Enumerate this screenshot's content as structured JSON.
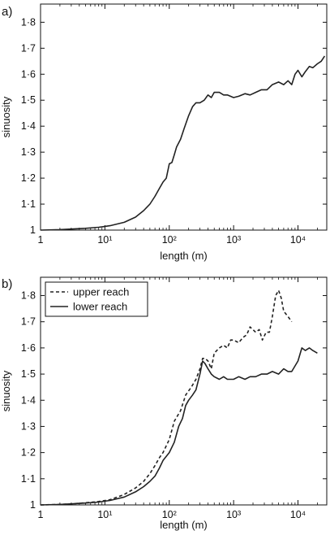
{
  "chart_data": [
    {
      "type": "line",
      "panel_label": "a)",
      "xlabel": "length (m)",
      "ylabel": "sinuosity",
      "x_scale": "log",
      "xlim": [
        1,
        28000
      ],
      "ylim": [
        1,
        1.87
      ],
      "x_ticks": [
        1,
        10,
        100,
        1000,
        10000
      ],
      "x_tick_labels": [
        "1",
        "10¹",
        "10²",
        "10³",
        "10⁴"
      ],
      "y_ticks": [
        1,
        1.1,
        1.2,
        1.3,
        1.4,
        1.5,
        1.6,
        1.7,
        1.8
      ],
      "y_tick_labels": [
        "1",
        "1·1",
        "1·2",
        "1·3",
        "1·4",
        "1·5",
        "1·6",
        "1·7",
        "1·8"
      ],
      "grid": false,
      "series": [
        {
          "name": "",
          "style": "solid",
          "x": [
            1,
            2,
            3,
            5,
            8,
            12,
            20,
            30,
            40,
            50,
            60,
            70,
            80,
            90,
            100,
            110,
            120,
            130,
            150,
            170,
            200,
            230,
            260,
            300,
            350,
            400,
            450,
            500,
            600,
            700,
            800,
            1000,
            1200,
            1500,
            1800,
            2200,
            2700,
            3300,
            4000,
            5000,
            6000,
            7000,
            8000,
            9000,
            10000,
            11500,
            13000,
            15000,
            17000,
            20000,
            23000,
            26000
          ],
          "y": [
            1.0,
            1.002,
            1.004,
            1.007,
            1.011,
            1.017,
            1.03,
            1.05,
            1.075,
            1.1,
            1.13,
            1.16,
            1.185,
            1.2,
            1.255,
            1.26,
            1.29,
            1.32,
            1.35,
            1.39,
            1.44,
            1.475,
            1.49,
            1.49,
            1.5,
            1.52,
            1.51,
            1.53,
            1.53,
            1.52,
            1.52,
            1.51,
            1.515,
            1.525,
            1.52,
            1.53,
            1.54,
            1.54,
            1.56,
            1.57,
            1.56,
            1.575,
            1.56,
            1.6,
            1.615,
            1.59,
            1.61,
            1.63,
            1.625,
            1.64,
            1.65,
            1.67
          ]
        }
      ]
    },
    {
      "type": "line",
      "panel_label": "b)",
      "xlabel": "length (m)",
      "ylabel": "sinuosity",
      "x_scale": "log",
      "xlim": [
        1,
        28000
      ],
      "ylim": [
        1,
        1.87
      ],
      "x_ticks": [
        1,
        10,
        100,
        1000,
        10000
      ],
      "x_tick_labels": [
        "1",
        "10¹",
        "10²",
        "10³",
        "10⁴"
      ],
      "y_ticks": [
        1,
        1.1,
        1.2,
        1.3,
        1.4,
        1.5,
        1.6,
        1.7,
        1.8
      ],
      "y_tick_labels": [
        "1",
        "1·1",
        "1·2",
        "1·3",
        "1·4",
        "1·5",
        "1·6",
        "1·7",
        "1·8"
      ],
      "grid": false,
      "legend": "top-left",
      "series": [
        {
          "name": "upper reach",
          "style": "dashed",
          "x": [
            1,
            2,
            3,
            5,
            8,
            12,
            20,
            30,
            40,
            50,
            60,
            70,
            80,
            100,
            120,
            150,
            180,
            220,
            260,
            300,
            330,
            360,
            400,
            450,
            500,
            600,
            700,
            800,
            900,
            1000,
            1200,
            1400,
            1600,
            1800,
            2000,
            2200,
            2500,
            2800,
            3200,
            3600,
            4000,
            4500,
            5000,
            5500,
            6000,
            7000,
            8000
          ],
          "y": [
            1.0,
            1.002,
            1.004,
            1.008,
            1.013,
            1.02,
            1.04,
            1.065,
            1.09,
            1.12,
            1.15,
            1.18,
            1.2,
            1.25,
            1.32,
            1.36,
            1.42,
            1.45,
            1.48,
            1.52,
            1.56,
            1.56,
            1.55,
            1.52,
            1.58,
            1.6,
            1.61,
            1.6,
            1.63,
            1.63,
            1.62,
            1.64,
            1.65,
            1.68,
            1.67,
            1.66,
            1.67,
            1.63,
            1.66,
            1.66,
            1.72,
            1.8,
            1.82,
            1.79,
            1.74,
            1.72,
            1.7
          ]
        },
        {
          "name": "lower reach",
          "style": "solid",
          "x": [
            1,
            2,
            3,
            5,
            8,
            12,
            20,
            30,
            40,
            50,
            60,
            70,
            80,
            100,
            120,
            140,
            160,
            180,
            200,
            230,
            260,
            300,
            330,
            360,
            400,
            450,
            500,
            600,
            700,
            800,
            1000,
            1200,
            1500,
            1800,
            2200,
            2700,
            3300,
            4000,
            5000,
            6000,
            7000,
            8000,
            10000,
            11500,
            13000,
            15000,
            17000,
            20000
          ],
          "y": [
            1.0,
            1.002,
            1.004,
            1.007,
            1.011,
            1.017,
            1.03,
            1.05,
            1.07,
            1.09,
            1.11,
            1.14,
            1.17,
            1.2,
            1.24,
            1.3,
            1.33,
            1.38,
            1.4,
            1.42,
            1.44,
            1.5,
            1.55,
            1.54,
            1.52,
            1.5,
            1.49,
            1.48,
            1.49,
            1.48,
            1.48,
            1.49,
            1.48,
            1.49,
            1.49,
            1.5,
            1.5,
            1.51,
            1.5,
            1.52,
            1.51,
            1.51,
            1.55,
            1.6,
            1.59,
            1.6,
            1.59,
            1.58
          ]
        }
      ]
    }
  ]
}
